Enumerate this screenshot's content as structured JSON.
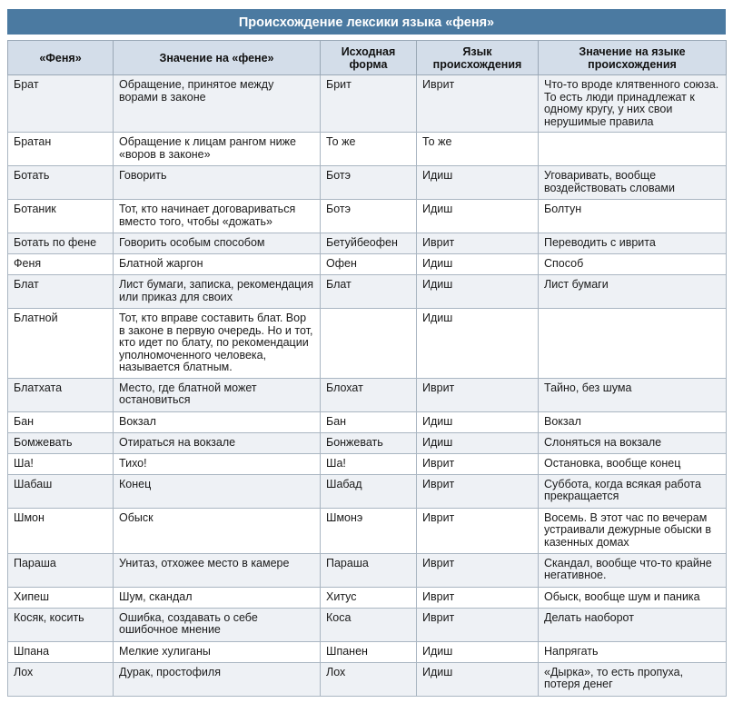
{
  "title": "Происхождение лексики языка «феня»",
  "headers": [
    "«Феня»",
    "Значение на «фене»",
    "Исходная форма",
    "Язык происхождения",
    "Значение на языке происхождения"
  ],
  "rows": [
    {
      "c": [
        "Брат",
        "Обращение, принятое между ворами в законе",
        "Брит",
        "Иврит",
        "Что-то вроде клятвенного союза. То есть люди принадлежат к одному кругу, у них свои нерушимые правила"
      ],
      "h": 60
    },
    {
      "c": [
        "Братан",
        "Обращение к лицам рангом ниже «воров в законе»",
        "То же",
        "То же",
        ""
      ],
      "h": 37
    },
    {
      "c": [
        "Ботать",
        "Говорить",
        "Ботэ",
        "Идиш",
        "Уговаривать, вообще воздействовать словами"
      ],
      "h": 37
    },
    {
      "c": [
        "Ботаник",
        "Тот, кто начинает договариваться вместо того, чтобы «дожать»",
        "Ботэ",
        "Идиш",
        "Болтун"
      ],
      "h": 37
    },
    {
      "c": [
        "Ботать по фене",
        "Говорить особым способом",
        "Бетуйбеофен",
        "Иврит",
        "Переводить с иврита"
      ],
      "h": 23
    },
    {
      "c": [
        "Феня",
        "Блатной жаргон",
        "Офен",
        "Идиш",
        "Способ"
      ],
      "h": 23
    },
    {
      "c": [
        "Блат",
        "Лист бумаги, записка, рекомендация или приказ для своих",
        "Блат",
        "Идиш",
        "Лист бумаги"
      ],
      "h": 37
    },
    {
      "c": [
        "Блатной",
        "Тот, кто вправе составить блат. Вор в законе в первую очередь. Но и тот, кто идет по блату, по рекомендации уполномоченного человека, называется блатным.",
        "",
        "Идиш",
        ""
      ],
      "h": 74
    },
    {
      "c": [
        "Блатхата",
        "Место, где блатной может остановиться",
        "Блохат",
        "Иврит",
        "Тайно, без шума"
      ],
      "h": 37
    },
    {
      "c": [
        "Бан",
        "Вокзал",
        "Бан",
        "Идиш",
        "Вокзал"
      ],
      "h": 23
    },
    {
      "c": [
        "Бомжевать",
        "Отираться на вокзале",
        "Бонжевать",
        "Идиш",
        "Слоняться на вокзале"
      ],
      "h": 23
    },
    {
      "c": [
        "Ша!",
        "Тихо!",
        "Ша!",
        "Иврит",
        "Остановка, вообще конец"
      ],
      "h": 23
    },
    {
      "c": [
        "Шабаш",
        "Конец",
        "Шабад",
        "Иврит",
        "Суббота, когда всякая работа прекращается"
      ],
      "h": 37
    },
    {
      "c": [
        "Шмон",
        "Обыск",
        "Шмонэ",
        "Иврит",
        "Восемь. В этот час по вечерам устраивали дежурные обыски в казенных домах"
      ],
      "h": 50
    },
    {
      "c": [
        "Параша",
        "Унитаз, отхожее место в камере",
        "Параша",
        "Иврит",
        "Скандал, вообще что-то крайне негативное."
      ],
      "h": 37
    },
    {
      "c": [
        "Хипеш",
        "Шум, скандал",
        "Хитус",
        "Иврит",
        "Обыск, вообще шум и паника"
      ],
      "h": 23
    },
    {
      "c": [
        "Косяк, косить",
        "Ошибка, создавать о себе ошибочное мнение",
        "Коса",
        "Иврит",
        "Делать наоборот"
      ],
      "h": 37
    },
    {
      "c": [
        "Шпана",
        "Мелкие хулиганы",
        "Шпанен",
        "Идиш",
        "Напрягать"
      ],
      "h": 23
    },
    {
      "c": [
        "Лох",
        "Дурак, простофиля",
        "Лох",
        "Идиш",
        "«Дырка», то есть пропуха, потеря денег"
      ],
      "h": 37
    }
  ]
}
